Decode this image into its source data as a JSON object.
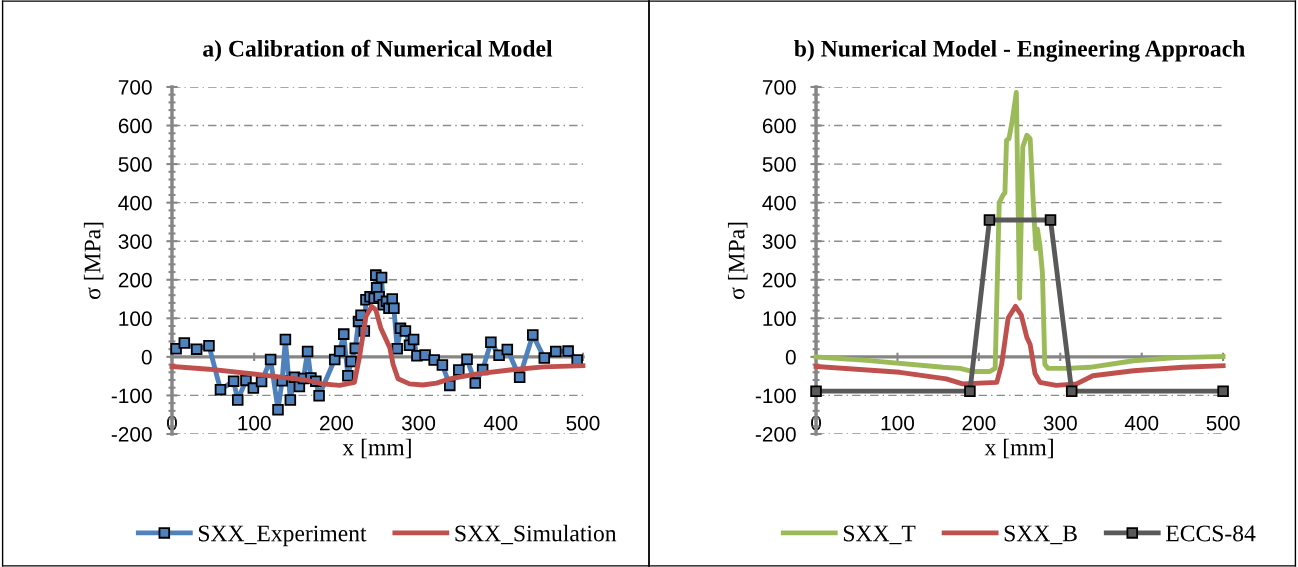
{
  "chart_data": [
    {
      "type": "line",
      "title": "a) Calibration of Numerical Model",
      "xlabel": "x [mm]",
      "ylabel": "σ [MPa]",
      "xlim": [
        0,
        500
      ],
      "ylim": [
        -200,
        700
      ],
      "xticks": [
        0,
        100,
        200,
        300,
        400,
        500
      ],
      "yticks": [
        -200,
        -100,
        0,
        100,
        200,
        300,
        400,
        500,
        600,
        700
      ],
      "grid": "y",
      "legend": "bottom",
      "series": [
        {
          "name": "SXX_Experiment",
          "color": "#4f81bd",
          "marker": "square",
          "x": [
            5,
            15,
            30,
            45,
            59,
            75,
            80,
            90,
            99,
            109,
            120,
            129,
            134,
            138,
            144,
            149,
            155,
            160,
            165,
            169,
            175,
            179,
            198,
            204,
            209,
            214,
            218,
            223,
            227,
            230,
            234,
            236,
            241,
            246,
            248,
            249,
            252,
            255,
            257,
            261,
            264,
            268,
            270,
            274,
            278,
            284,
            289,
            294,
            298,
            308,
            319,
            329,
            338,
            349,
            359,
            369,
            378,
            388,
            398,
            408,
            423,
            439,
            453,
            467,
            482,
            493
          ],
          "values": [
            21,
            36,
            20,
            29,
            -85,
            -63,
            -112,
            -61,
            -81,
            -64,
            -7,
            -137,
            -62,
            45,
            -112,
            -53,
            -77,
            -56,
            14,
            -55,
            -63,
            -101,
            -7,
            15,
            59,
            -49,
            -12,
            22,
            92,
            108,
            67,
            148,
            156,
            152,
            212,
            179,
            156,
            206,
            135,
            144,
            126,
            150,
            126,
            21,
            74,
            67,
            30,
            45,
            3,
            5,
            -8,
            -21,
            -74,
            -34,
            -6,
            -68,
            -33,
            38,
            4,
            19,
            -53,
            57,
            -3,
            14,
            15,
            -8
          ]
        },
        {
          "name": "SXX_Simulation",
          "color": "#c0504d",
          "x": [
            0,
            45,
            106,
            163,
            183,
            204,
            222,
            228,
            236,
            243,
            248,
            254,
            265,
            269,
            275,
            289,
            305,
            322,
            338,
            371,
            411,
            452,
            500
          ],
          "values": [
            -25,
            -32,
            -46,
            -60,
            -70,
            -74,
            -66,
            -2,
            105,
            131,
            122,
            75,
            24,
            -19,
            -57,
            -70,
            -73,
            -68,
            -57,
            -44,
            -34,
            -26,
            -23
          ]
        }
      ]
    },
    {
      "type": "line",
      "title": "b) Numerical Model - Engineering Approach",
      "xlabel": "x [mm]",
      "ylabel": "σ [MPa]",
      "xlim": [
        0,
        500
      ],
      "ylim": [
        -200,
        700
      ],
      "xticks": [
        0,
        100,
        200,
        300,
        400,
        500
      ],
      "yticks": [
        -200,
        -100,
        0,
        100,
        200,
        300,
        400,
        500,
        600,
        700
      ],
      "grid": "y",
      "legend": "bottom",
      "series": [
        {
          "name": "SXX_T",
          "color": "#9bbb59",
          "x": [
            0,
            62,
            156,
            177,
            193,
            213,
            220,
            225,
            230,
            232,
            234,
            237,
            241,
            246,
            250,
            254,
            259,
            263,
            267,
            270,
            272,
            275,
            278,
            281,
            285,
            308,
            336,
            390,
            443,
            500
          ],
          "values": [
            0,
            -9,
            -27,
            -30,
            -38,
            -38,
            -30,
            400,
            421,
            425,
            562,
            566,
            613,
            686,
            152,
            545,
            575,
            566,
            391,
            280,
            331,
            289,
            220,
            -19,
            -30,
            -30,
            -27,
            -10,
            -2,
            1
          ]
        },
        {
          "name": "SXX_B",
          "color": "#c0504d",
          "x": [
            0,
            103,
            160,
            180,
            222,
            228,
            236,
            245,
            252,
            259,
            263,
            269,
            275,
            295,
            320,
            340,
            390,
            451,
            500
          ],
          "values": [
            -25,
            -40,
            -57,
            -70,
            -66,
            -19,
            101,
            131,
            109,
            50,
            32,
            -44,
            -66,
            -74,
            -70,
            -49,
            -36,
            -27,
            -23
          ]
        },
        {
          "name": "ECCS-84",
          "color": "#595959",
          "marker": "square",
          "x": [
            0,
            189,
            213,
            288,
            314,
            500
          ],
          "values": [
            -89,
            -89,
            355,
            355,
            -89,
            -89
          ]
        }
      ]
    }
  ]
}
